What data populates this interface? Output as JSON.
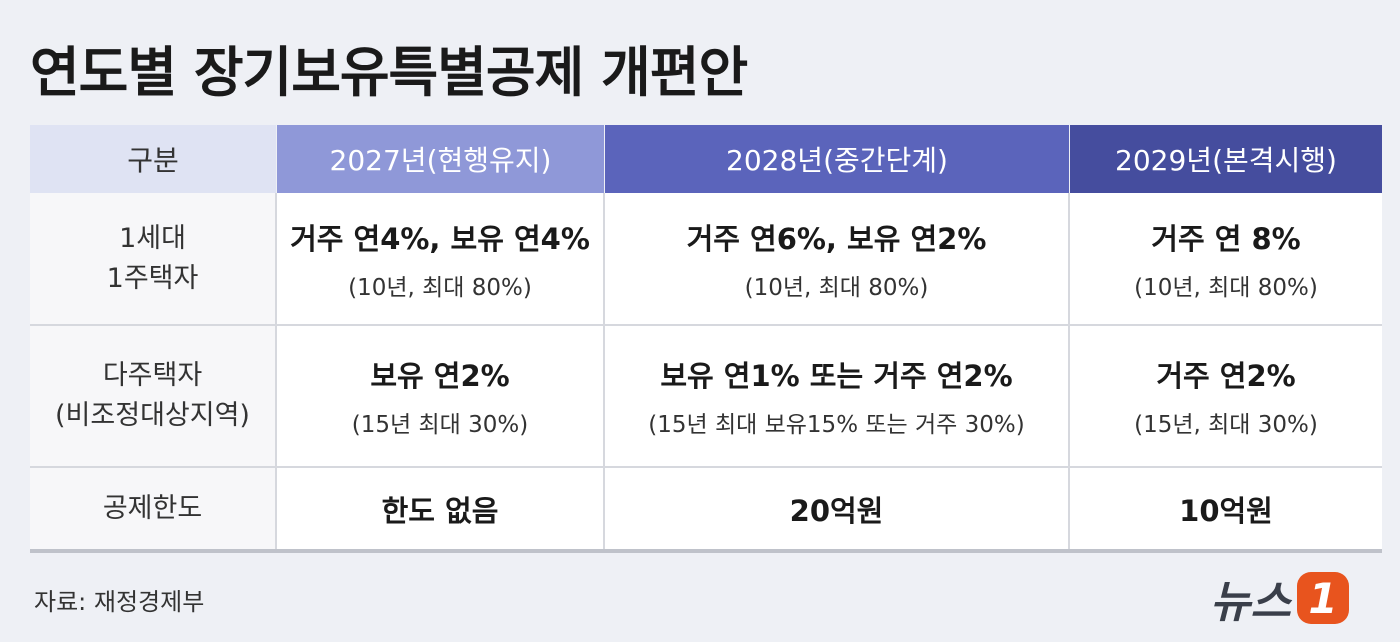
{
  "title": "연도별 장기보유특별공제 개편안",
  "table": {
    "header": [
      "구분",
      "2027년(현행유지)",
      "2028년(중간단계)",
      "2029년(본격시행)"
    ],
    "rows": [
      {
        "label": [
          "1세대",
          "1주택자"
        ],
        "cells": [
          {
            "main": "거주 연4%, 보유 연4%",
            "sub": "(10년, 최대 80%)"
          },
          {
            "main": "거주 연6%, 보유 연2%",
            "sub": "(10년, 최대 80%)"
          },
          {
            "main": "거주 연 8%",
            "sub": "(10년, 최대 80%)"
          }
        ]
      },
      {
        "label": [
          "다주택자",
          "(비조정대상지역)"
        ],
        "cells": [
          {
            "main": "보유 연2%",
            "sub": "(15년 최대 30%)"
          },
          {
            "main": "보유 연1% 또는 거주 연2%",
            "sub": "(15년 최대 보유15% 또는 거주 30%)"
          },
          {
            "main": "거주 연2%",
            "sub": "(15년, 최대 30%)"
          }
        ]
      },
      {
        "label": [
          "공제한도"
        ],
        "cells": [
          {
            "main": "한도 없음"
          },
          {
            "main": "20억원"
          },
          {
            "main": "10억원"
          }
        ]
      }
    ]
  },
  "source": "자료: 재정경제부",
  "logo": {
    "text": "뉴스",
    "mark": "1"
  }
}
